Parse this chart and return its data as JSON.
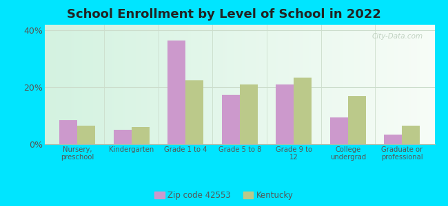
{
  "title": "School Enrollment by Level of School in 2022",
  "categories": [
    "Nursery,\npreschool",
    "Kindergarten",
    "Grade 1 to 4",
    "Grade 5 to 8",
    "Grade 9 to\n12",
    "College\nundergrad",
    "Graduate or\nprofessional"
  ],
  "zipcode_values": [
    8.5,
    5.0,
    36.5,
    17.5,
    21.0,
    9.5,
    3.5
  ],
  "kentucky_values": [
    6.5,
    6.0,
    22.5,
    21.0,
    23.5,
    17.0,
    6.5
  ],
  "zip_color": "#cc99cc",
  "ky_color": "#bbc98a",
  "ylim": [
    0,
    42
  ],
  "yticks": [
    0,
    20,
    40
  ],
  "ytick_labels": [
    "0%",
    "20%",
    "40%"
  ],
  "background_outer": "#00e5ff",
  "title_fontsize": 13,
  "legend_zip_label": "Zip code 42553",
  "legend_ky_label": "Kentucky",
  "watermark": "City-Data.com",
  "title_color": "#222222",
  "tick_color": "#555555",
  "grid_color": "#ccddcc"
}
